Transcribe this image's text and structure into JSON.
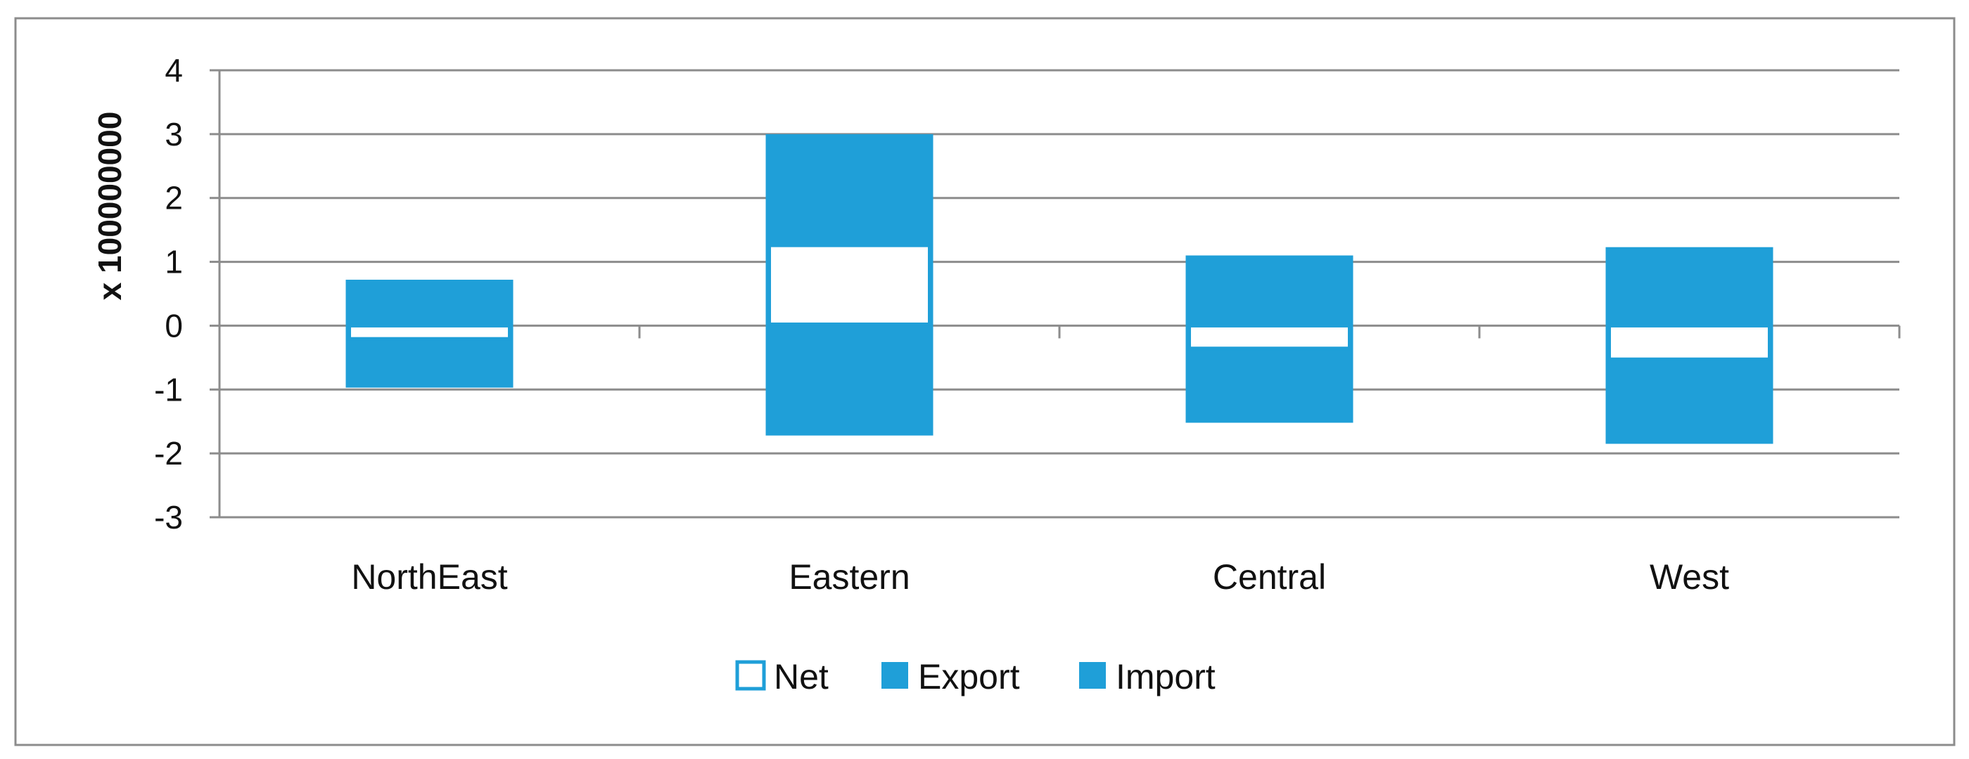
{
  "chart_data": {
    "type": "bar",
    "title": "",
    "xlabel": "",
    "ylabel": "x 100000000",
    "ylim": [
      -3,
      4
    ],
    "yticks": [
      4,
      3,
      2,
      1,
      0,
      -1,
      -2,
      -3
    ],
    "grid": true,
    "legend_position": "bottom",
    "categories": [
      "NorthEast",
      "Eastern",
      "Central",
      "West"
    ],
    "series": [
      {
        "name": "Net",
        "values": [
          -0.25,
          1.28,
          -0.4,
          -0.57
        ],
        "color": "#ffffff",
        "stroke": "#1f9fd8"
      },
      {
        "name": "Export",
        "values": [
          0.72,
          3.0,
          1.1,
          1.23
        ],
        "color": "#1f9fd8"
      },
      {
        "name": "Import",
        "values": [
          -0.97,
          -1.72,
          -1.52,
          -1.85
        ],
        "color": "#1f9fd8"
      }
    ]
  },
  "colors": {
    "bar": "#1f9fd8",
    "grid": "#8c8c8c",
    "axis": "#8c8c8c",
    "frame": "#8c8c8c"
  }
}
